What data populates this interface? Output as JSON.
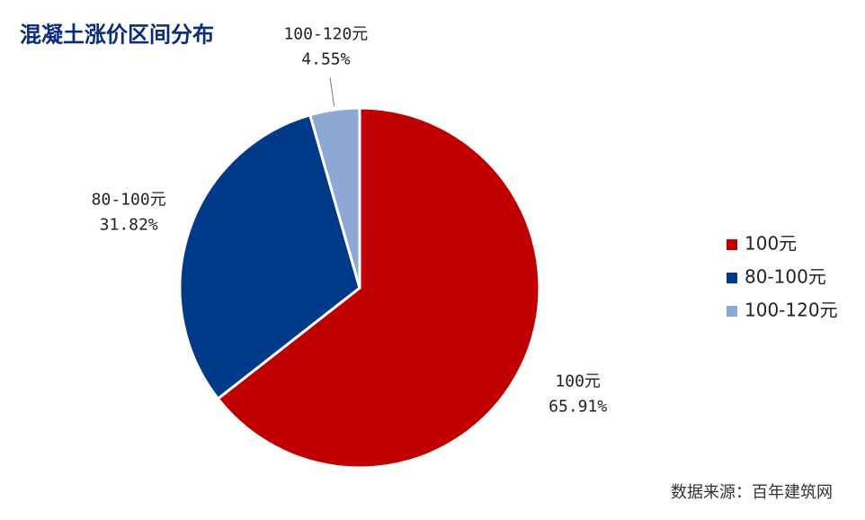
{
  "chart_data": {
    "type": "pie",
    "title": "混凝土涨价区间分布",
    "categories": [
      "100元",
      "80-100元",
      "100-120元"
    ],
    "values": [
      65.91,
      31.82,
      4.55
    ],
    "value_labels": [
      "65.91%",
      "31.82%",
      "4.55%"
    ],
    "colors": [
      "#c00000",
      "#023a8a",
      "#8ea8d6"
    ],
    "legend": "right",
    "source": "数据来源：百年建筑网"
  }
}
